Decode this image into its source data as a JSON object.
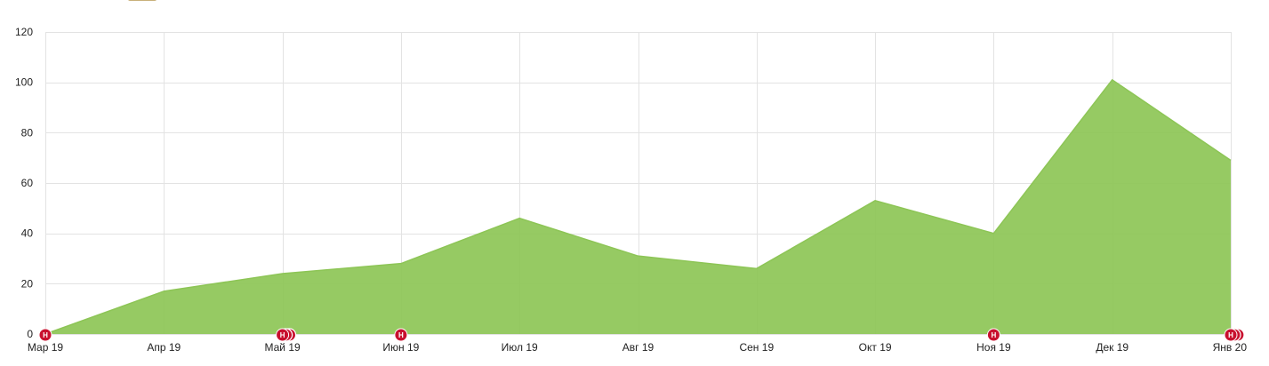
{
  "colors": {
    "area_fill": "#8dc556",
    "area_stroke": "#8dc556",
    "grid": "#e3e3e3",
    "marker": "#c8102e",
    "marker_text": "#ffffff",
    "legend_swatch": "#c8b07a"
  },
  "marker_letter": "Н",
  "chart_data": {
    "type": "area",
    "title": "",
    "xlabel": "",
    "ylabel": "",
    "ylim": [
      0,
      120
    ],
    "yticks": [
      0,
      20,
      40,
      60,
      80,
      100,
      120
    ],
    "grid": true,
    "categories": [
      "Мар 19",
      "Апр 19",
      "Май 19",
      "Июн 19",
      "Июл 19",
      "Авг 19",
      "Сен 19",
      "Окт 19",
      "Ноя 19",
      "Дек 19",
      "Янв 20"
    ],
    "series": [
      {
        "values": [
          0,
          17,
          24,
          28,
          46,
          31,
          26,
          53,
          40,
          101,
          69
        ]
      }
    ],
    "event_markers": [
      {
        "category": "Мар 19",
        "stack": 1
      },
      {
        "category": "Май 19",
        "stack": 3
      },
      {
        "category": "Июн 19",
        "stack": 1
      },
      {
        "category": "Ноя 19",
        "stack": 1
      },
      {
        "category": "Янв 20",
        "stack": 3
      }
    ]
  }
}
